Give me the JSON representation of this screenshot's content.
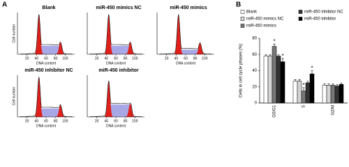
{
  "panel_a": {
    "label": "A",
    "y_label": "Cell number",
    "x_label": "DNA content",
    "xlim": [
      0,
      120
    ],
    "xticks": [
      20,
      40,
      60,
      80,
      100
    ],
    "panels": [
      {
        "title": "Blank"
      },
      {
        "title": "miR-450 mimics NC"
      },
      {
        "title": "miR-450 mimics"
      },
      {
        "title": "miR-450 inhibitor NC"
      },
      {
        "title": "miR-450 inhibitor"
      }
    ]
  },
  "chart_data": {
    "type": "bar",
    "label": "B",
    "y_label": "Cells in cell cycle phases (%)",
    "categories": [
      "G0/G1",
      "S",
      "G2/M"
    ],
    "ylim": [
      0,
      80
    ],
    "yticks": [
      0,
      20,
      40,
      60,
      80
    ],
    "series": [
      {
        "name": "Blank",
        "color": "#ffffff",
        "values": [
          58,
          27,
          22
        ],
        "errors": [
          1.5,
          2,
          1.5
        ]
      },
      {
        "name": "miR-450 mimics NC",
        "color": "#d4d4d4",
        "values": [
          58,
          27,
          22
        ],
        "errors": [
          1.5,
          2,
          1.5
        ]
      },
      {
        "name": "miR-450 mimics",
        "color": "#777777",
        "values": [
          70,
          15,
          22
        ],
        "errors": [
          3,
          4,
          1.5
        ],
        "annotations": [
          "*",
          "*",
          null
        ]
      },
      {
        "name": "miR-450 inhibitor NC",
        "color": "#333333",
        "values": [
          58,
          25,
          21
        ],
        "errors": [
          1.5,
          2,
          1.5
        ]
      },
      {
        "name": "miR-450 inhibitor",
        "color": "#000000",
        "values": [
          51,
          36,
          23
        ],
        "errors": [
          4,
          4,
          1.5
        ],
        "annotations": [
          "*",
          "*",
          null
        ]
      }
    ]
  }
}
